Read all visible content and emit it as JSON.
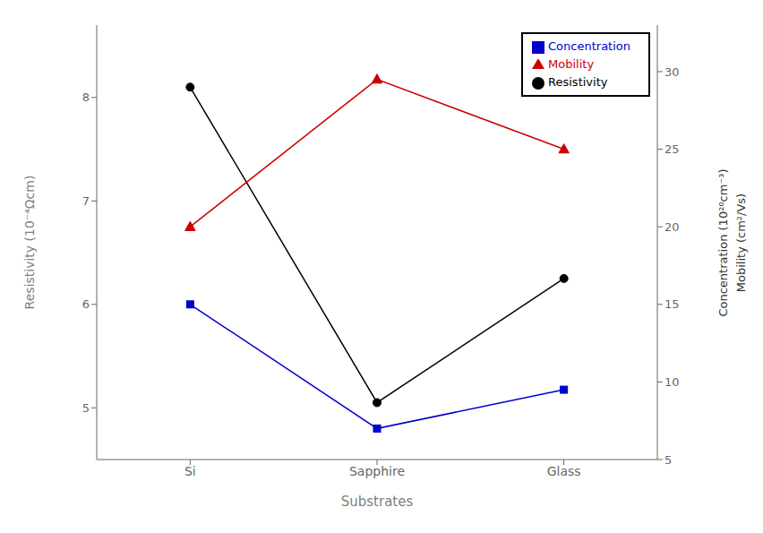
{
  "chart_data": {
    "type": "line",
    "xlabel": "Substrates",
    "ylabel": "Resistivity (10⁻⁴Ωcm)",
    "y2label": [
      "Concentration (10²⁰cm⁻³)",
      "Mobility (cm²/Vs)"
    ],
    "categories": [
      "Si",
      "Sapphire",
      "Glass"
    ],
    "series": [
      {
        "name": "Resistivity",
        "color": "#000000",
        "marker": "circle",
        "values": [
          8.1,
          5.05,
          6.25
        ]
      },
      {
        "name": "Mobility",
        "color": "#cc0000",
        "marker": "triangle",
        "axis": "y2",
        "values": [
          20.0,
          29.5,
          25.0
        ]
      },
      {
        "name": "Concentration",
        "color": "#0000cc",
        "marker": "square",
        "axis": "y2",
        "values": [
          15.0,
          7.0,
          9.5
        ]
      }
    ],
    "ylim": [
      4.5,
      8.7
    ],
    "yticks": [
      5,
      6,
      7,
      8
    ],
    "y2lim": [
      5,
      33
    ],
    "y2ticks": [
      5,
      10,
      15,
      20,
      25,
      30
    ],
    "grid": false,
    "legend": "upper right"
  }
}
